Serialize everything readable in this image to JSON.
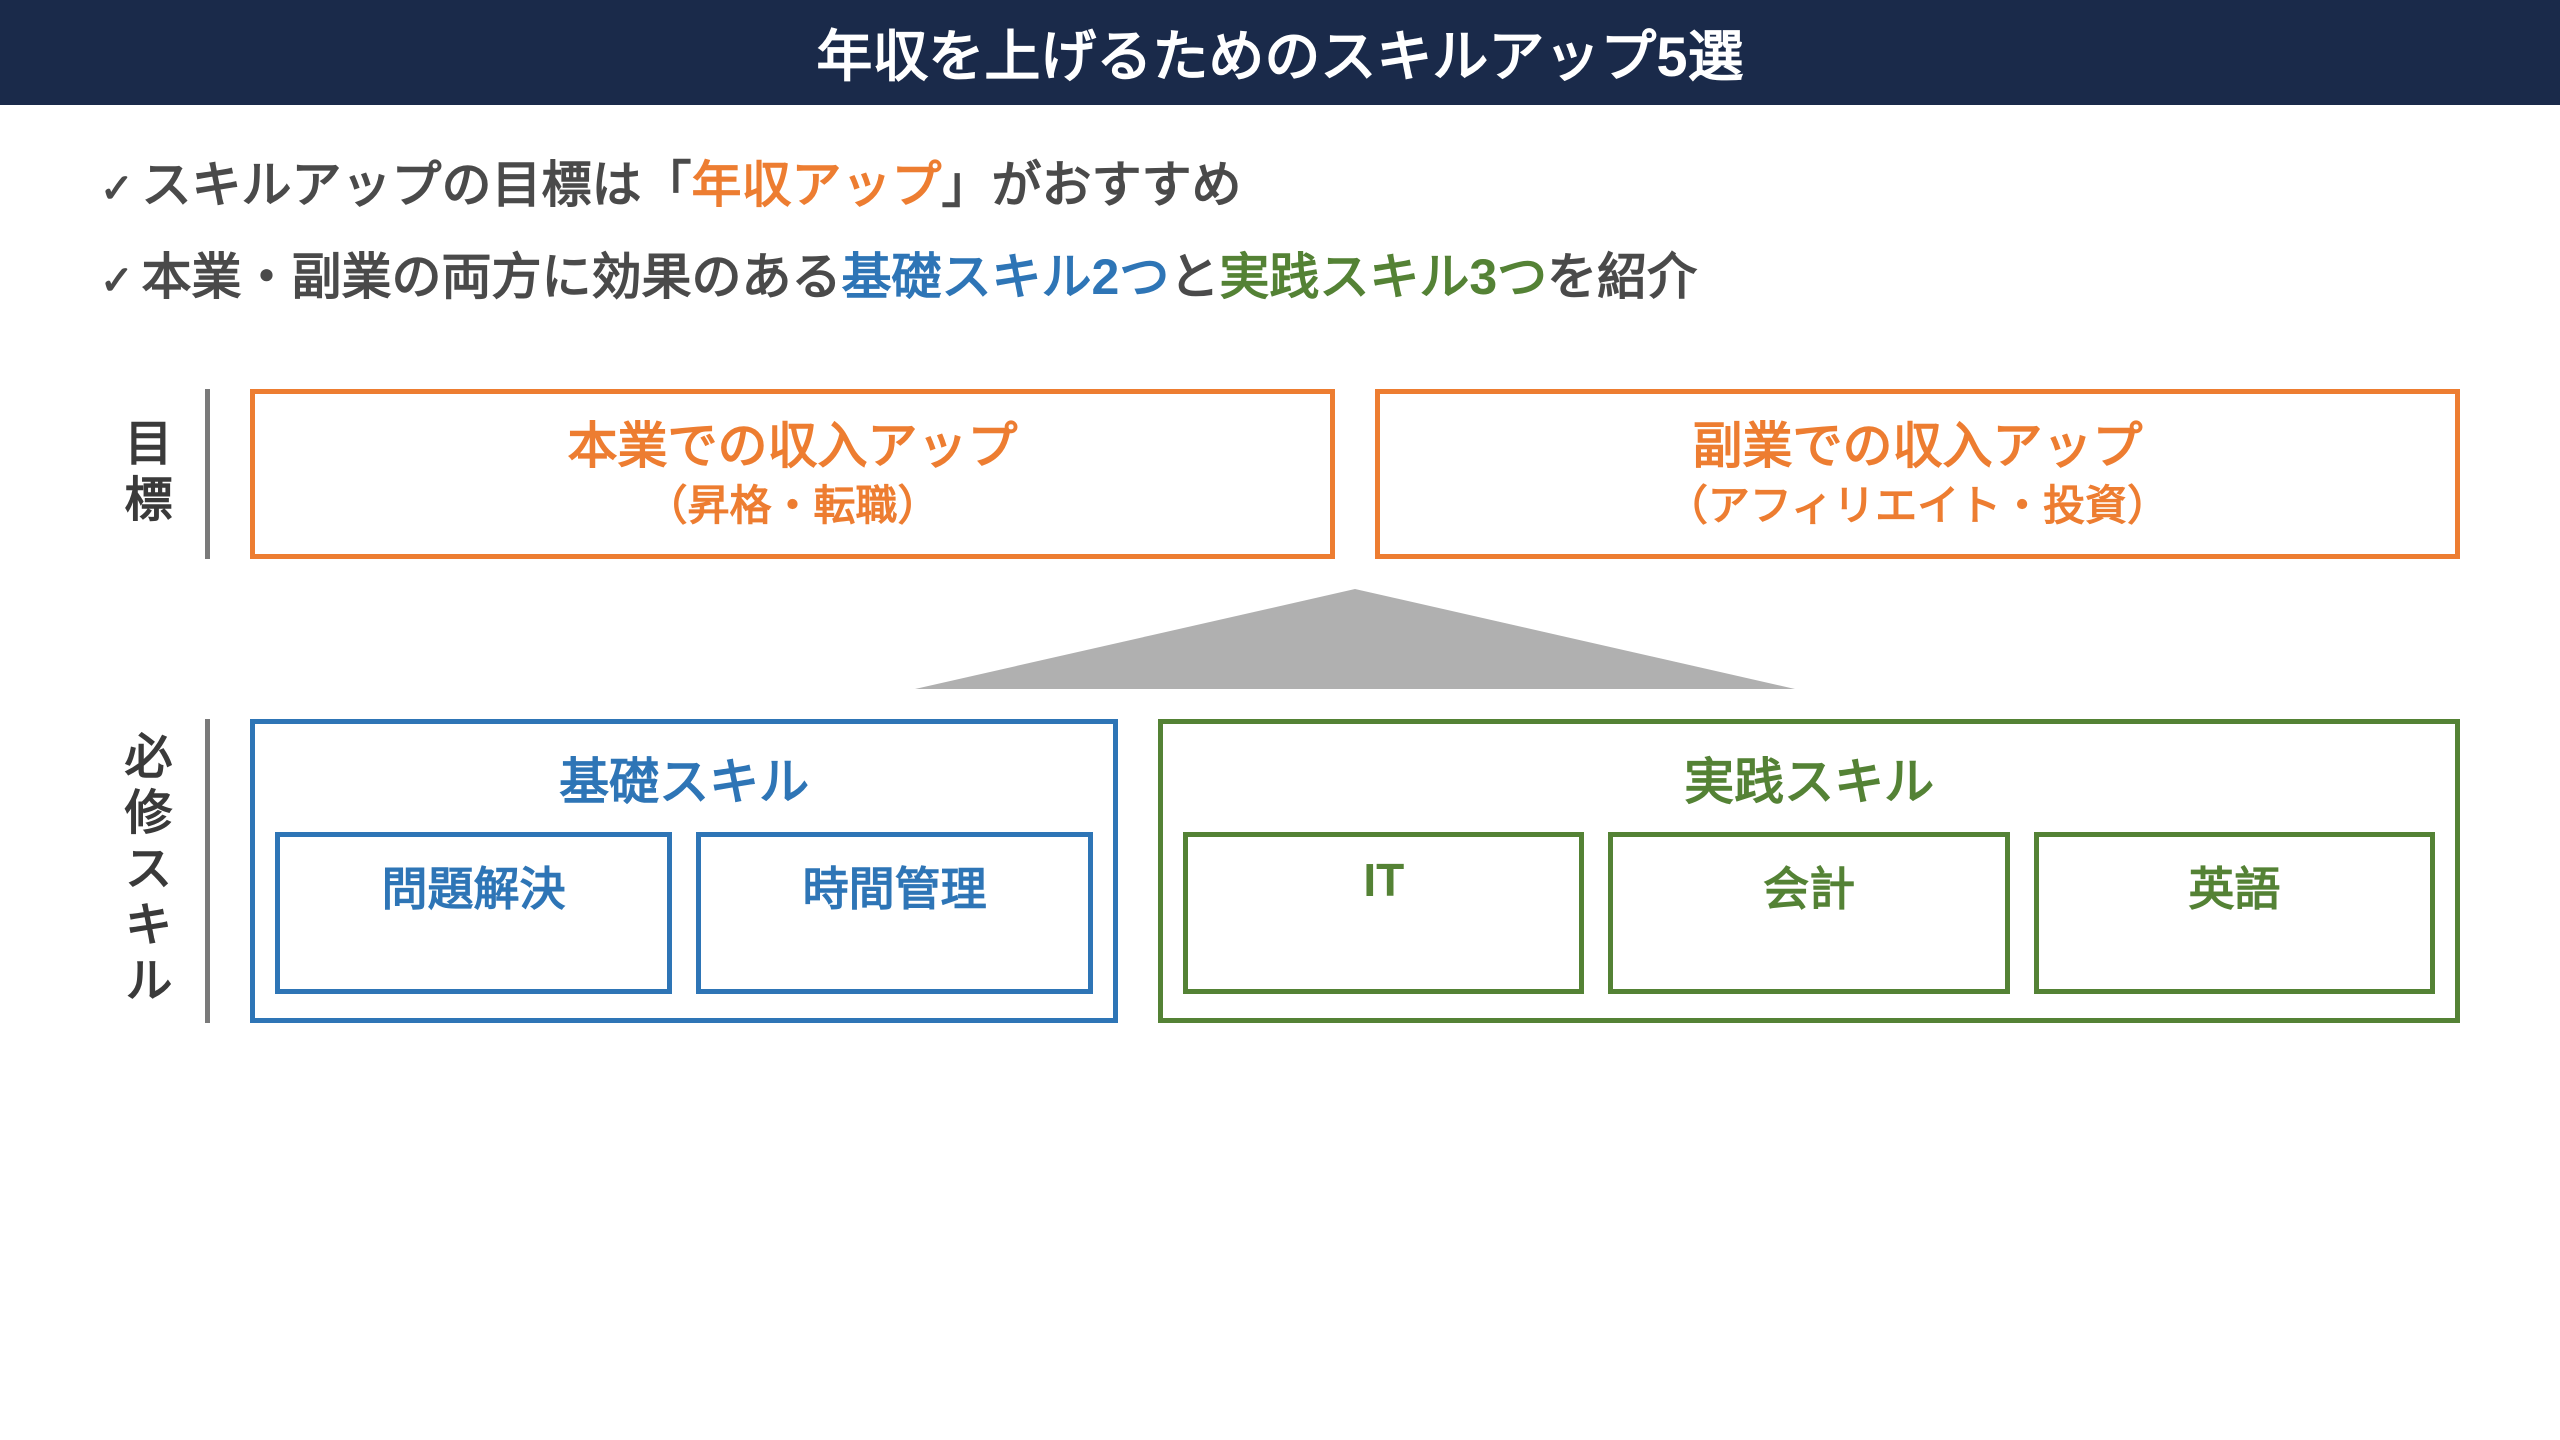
{
  "title": "年収を上げるためのスキルアップ5選",
  "bullets": {
    "line1": {
      "pre": "スキルアップの目標は「",
      "highlight": "年収アップ",
      "post": "」がおすすめ"
    },
    "line2": {
      "pre": "本業・副業の両方に効果のある",
      "blue": "基礎スキル2つ",
      "mid": "と",
      "green": "実践スキル3つ",
      "post": "を紹介"
    }
  },
  "rowLabels": {
    "goal": "目標",
    "skills": "必修スキル"
  },
  "goals": {
    "main": {
      "title": "本業での収入アップ",
      "sub": "（昇格・転職）"
    },
    "side": {
      "title": "副業での収入アップ",
      "sub": "（アフィリエイト・投資）"
    }
  },
  "skillGroups": {
    "basic": {
      "title": "基礎スキル",
      "items": [
        "問題解決",
        "時間管理"
      ]
    },
    "practical": {
      "title": "実践スキル",
      "items": [
        "IT",
        "会計",
        "英語"
      ]
    }
  },
  "colors": {
    "titleBar": "#1a2a4a",
    "orange": "#ed7d31",
    "blue": "#2e75b6",
    "green": "#548235",
    "arrow": "#b0b0b0",
    "text": "#4a4a4a"
  }
}
